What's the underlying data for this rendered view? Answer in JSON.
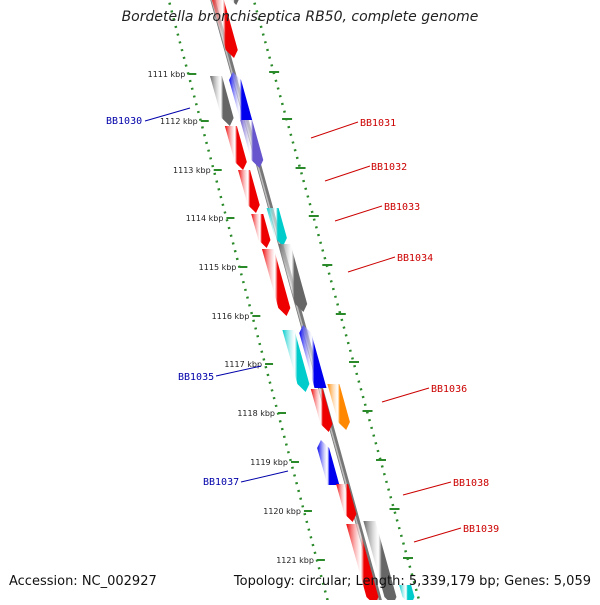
{
  "title": "Bordetella bronchiseptica RB50, complete genome",
  "accession_text": "Accession: NC_002927",
  "summary_text": "Topology: circular; Length: 5,339,179 bp; Genes: 5,059",
  "colors": {
    "backbone": "#8c8c8c",
    "dotted_track": "#2a8a2a",
    "forward_label": "#cc0000",
    "reverse_label": "#0000aa",
    "red": "#ee0000",
    "blue": "#0000ee",
    "gray": "#666666",
    "cyan": "#00cccc",
    "purple": "#6655cc",
    "orange": "#ff8800"
  },
  "ticks": [
    {
      "label": "1111 kbp"
    },
    {
      "label": "1112 kbp"
    },
    {
      "label": "1113 kbp"
    },
    {
      "label": "1114 kbp"
    },
    {
      "label": "1115 kbp"
    },
    {
      "label": "1116 kbp"
    },
    {
      "label": "1117 kbp"
    },
    {
      "label": "1118 kbp"
    },
    {
      "label": "1119 kbp"
    },
    {
      "label": "1120 kbp"
    },
    {
      "label": "1121 kbp"
    }
  ],
  "gene_labels": [
    {
      "name": "BB1030",
      "strand": "reverse"
    },
    {
      "name": "BB1031",
      "strand": "forward"
    },
    {
      "name": "BB1032",
      "strand": "forward"
    },
    {
      "name": "BB1033",
      "strand": "forward"
    },
    {
      "name": "BB1034",
      "strand": "forward"
    },
    {
      "name": "BB1035",
      "strand": "reverse"
    },
    {
      "name": "BB1036",
      "strand": "forward"
    },
    {
      "name": "BB1037",
      "strand": "reverse"
    },
    {
      "name": "BB1038",
      "strand": "forward"
    },
    {
      "name": "BB1039",
      "strand": "forward"
    }
  ]
}
